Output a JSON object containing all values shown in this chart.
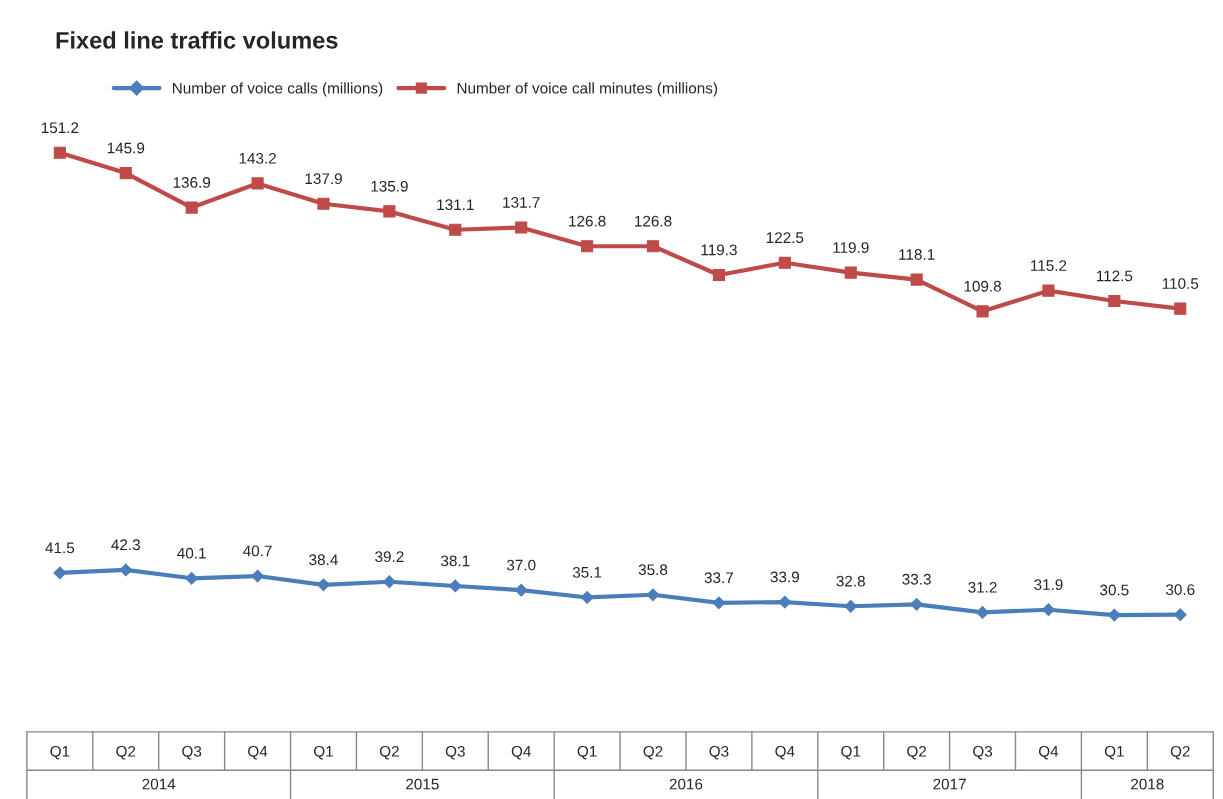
{
  "chart_data": {
    "type": "line",
    "title": "Fixed line traffic volumes",
    "categories": [
      "Q1",
      "Q2",
      "Q3",
      "Q4",
      "Q1",
      "Q2",
      "Q3",
      "Q4",
      "Q1",
      "Q2",
      "Q3",
      "Q4",
      "Q1",
      "Q2",
      "Q3",
      "Q4",
      "Q1",
      "Q2"
    ],
    "series": [
      {
        "name": "Number of voice calls (millions)",
        "color": "#4a7ebb",
        "marker": "diamond",
        "values": [
          41.5,
          42.3,
          40.1,
          40.7,
          38.4,
          39.2,
          38.1,
          37.0,
          35.1,
          35.8,
          33.7,
          33.9,
          32.8,
          33.3,
          31.2,
          31.9,
          30.5,
          30.6
        ],
        "value_labels": [
          "41.5",
          "42.3",
          "40.1",
          "40.7",
          "38.4",
          "39.2",
          "38.1",
          "37.0",
          "35.1",
          "35.8",
          "33.7",
          "33.9",
          "32.8",
          "33.3",
          "31.2",
          "31.9",
          "30.5",
          "30.6"
        ]
      },
      {
        "name": "Number of voice call minutes (millions)",
        "color": "#be4b48",
        "marker": "square",
        "values": [
          151.2,
          145.9,
          136.9,
          143.2,
          137.9,
          135.9,
          131.1,
          131.7,
          126.8,
          126.8,
          119.3,
          122.5,
          119.9,
          118.1,
          109.8,
          115.2,
          112.5,
          110.5
        ],
        "value_labels": [
          "151.2",
          "145.9",
          "136.9",
          "143.2",
          "137.9",
          "135.9",
          "131.1",
          "131.7",
          "126.8",
          "126.8",
          "119.3",
          "122.5",
          "119.9",
          "118.1",
          "109.8",
          "115.2",
          "112.5",
          "110.5"
        ]
      }
    ],
    "annotations": [
      "2014",
      "2015",
      "2016",
      "2017",
      "2018"
    ],
    "legend": "top",
    "grid": false,
    "line_style": "solid"
  }
}
